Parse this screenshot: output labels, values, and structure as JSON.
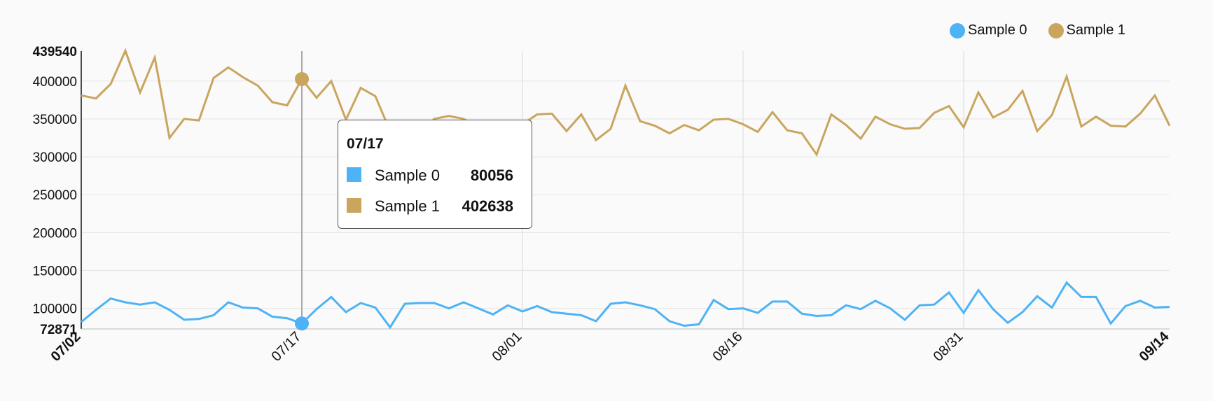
{
  "chart_data": {
    "type": "line",
    "x": [
      "07/02",
      "07/03",
      "07/04",
      "07/05",
      "07/06",
      "07/07",
      "07/08",
      "07/09",
      "07/10",
      "07/11",
      "07/12",
      "07/13",
      "07/14",
      "07/15",
      "07/16",
      "07/17",
      "07/18",
      "07/19",
      "07/20",
      "07/21",
      "07/22",
      "07/23",
      "07/24",
      "07/25",
      "07/26",
      "07/27",
      "07/28",
      "07/29",
      "07/30",
      "07/31",
      "08/01",
      "08/02",
      "08/03",
      "08/04",
      "08/05",
      "08/06",
      "08/07",
      "08/08",
      "08/09",
      "08/10",
      "08/11",
      "08/12",
      "08/13",
      "08/14",
      "08/15",
      "08/16",
      "08/17",
      "08/18",
      "08/19",
      "08/20",
      "08/21",
      "08/22",
      "08/23",
      "08/24",
      "08/25",
      "08/26",
      "08/27",
      "08/28",
      "08/29",
      "08/30",
      "08/31",
      "09/01",
      "09/02",
      "09/03",
      "09/04",
      "09/05",
      "09/06",
      "09/07",
      "09/08",
      "09/09",
      "09/10",
      "09/11",
      "09/12",
      "09/13",
      "09/14"
    ],
    "x_ticks": [
      "07/02",
      "07/17",
      "08/01",
      "08/16",
      "08/31",
      "09/14"
    ],
    "y_ticks": [
      100000,
      150000,
      200000,
      250000,
      300000,
      350000,
      400000
    ],
    "ylim": [
      72871,
      439540
    ],
    "ymin_label": "72871",
    "ymax_label": "439540",
    "series": [
      {
        "name": "Sample 0",
        "color": "#4db3f5",
        "values": [
          82000,
          98000,
          113000,
          108000,
          105000,
          108000,
          98000,
          85000,
          86000,
          91000,
          108000,
          101000,
          100000,
          89000,
          87000,
          80056,
          99000,
          115000,
          95000,
          107000,
          101000,
          75000,
          106000,
          107000,
          107000,
          100000,
          108000,
          100000,
          92000,
          104000,
          96000,
          103000,
          95000,
          93000,
          91000,
          83000,
          106000,
          108000,
          104000,
          99000,
          83000,
          77000,
          79000,
          111000,
          99000,
          100000,
          94000,
          109000,
          109000,
          93000,
          90000,
          91000,
          104000,
          99000,
          110000,
          100000,
          85000,
          104000,
          105000,
          121000,
          94000,
          124000,
          99000,
          81000,
          95000,
          116000,
          101000,
          134000,
          115000,
          115000,
          80000,
          103000,
          110000,
          101000,
          102000
        ]
      },
      {
        "name": "Sample 1",
        "color": "#c9a55e",
        "values": [
          381000,
          377000,
          396000,
          440000,
          385000,
          431000,
          325000,
          350000,
          348000,
          404000,
          418000,
          405000,
          394000,
          372000,
          368000,
          402638,
          378000,
          400000,
          349000,
          391000,
          380000,
          334000,
          340000,
          328000,
          350000,
          354000,
          350000,
          339000,
          334000,
          306000,
          343000,
          356000,
          357000,
          334000,
          356000,
          322000,
          337000,
          394000,
          347000,
          341000,
          331000,
          342000,
          335000,
          349000,
          350000,
          343000,
          333000,
          359000,
          335000,
          331000,
          303000,
          356000,
          342000,
          324000,
          353000,
          343000,
          337000,
          338000,
          358000,
          367000,
          339000,
          385000,
          352000,
          362000,
          387000,
          334000,
          355000,
          406000,
          340000,
          353000,
          341000,
          340000,
          357000,
          381000,
          341000
        ]
      }
    ],
    "legend_position": "top-right",
    "hover_index": 15
  },
  "legend": [
    {
      "label": "Sample 0",
      "color": "#4db3f5"
    },
    {
      "label": "Sample 1",
      "color": "#c9a55e"
    }
  ],
  "tooltip": {
    "title": "07/17",
    "rows": [
      {
        "name": "Sample 0",
        "value": "80056",
        "color": "#4db3f5"
      },
      {
        "name": "Sample 1",
        "value": "402638",
        "color": "#c9a55e"
      }
    ]
  }
}
